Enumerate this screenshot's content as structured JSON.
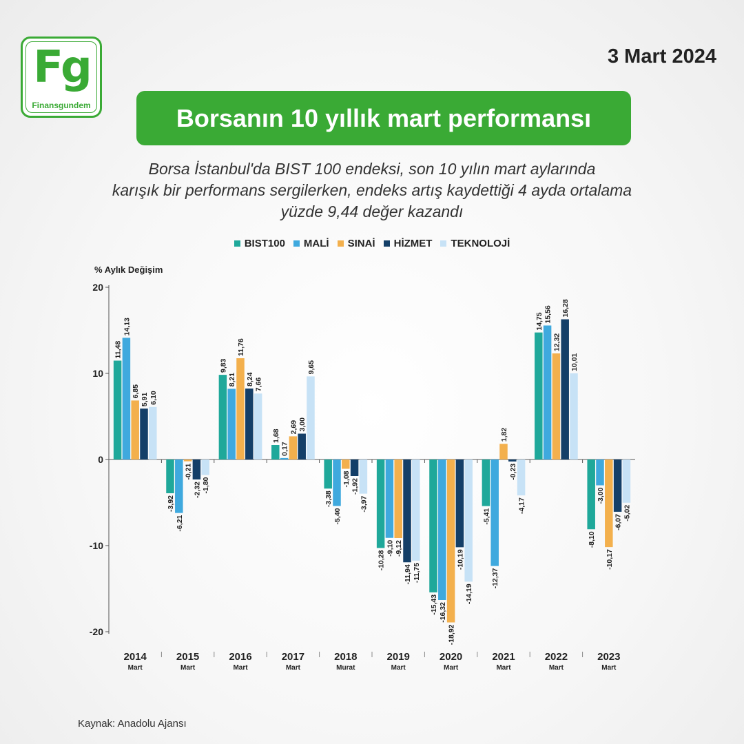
{
  "header": {
    "logo_mark": "Fg",
    "logo_text": "Finansgundem",
    "date": "3 Mart 2024",
    "title": "Borsanın 10 yıllık mart performansı",
    "subtitle_lines": [
      "Borsa İstanbul'da BIST 100 endeksi, son 10 yılın mart aylarında",
      "karışık bir performans sergilerken, endeks artış kaydettiği 4 ayda ortalama",
      "yüzde 9,44 değer kazandı"
    ]
  },
  "colors": {
    "brand_green": "#3aaa35",
    "BIST100": "#1fa89a",
    "MALİ": "#3fa9de",
    "SINAİ": "#f3b04d",
    "HİZMET": "#143f68",
    "TEKNOLOJİ": "#c7e2f6"
  },
  "chart_data": {
    "type": "bar",
    "ylabel": "% Aylık Değişim",
    "ylim": [
      -20,
      20
    ],
    "yticks": [
      "20",
      "10",
      "0",
      "-10",
      "-20"
    ],
    "grid": false,
    "legend_position": "top-center",
    "categories": [
      "2014",
      "2015",
      "2016",
      "2017",
      "2018",
      "2019",
      "2020",
      "2021",
      "2022",
      "2023"
    ],
    "category_sublabels": [
      "Mart",
      "Mart",
      "Mart",
      "Mart",
      "Murat",
      "Mart",
      "Mart",
      "Mart",
      "Mart",
      "Mart"
    ],
    "series": [
      {
        "name": "BIST100",
        "values": [
          11.48,
          -3.92,
          9.83,
          1.68,
          -3.38,
          -10.28,
          -15.43,
          -5.41,
          14.75,
          -8.1
        ],
        "labels": [
          "11,48",
          "-3,92",
          "9,83",
          "1,68",
          "-3,38",
          "-10,28",
          "-15,43",
          "-5,41",
          "14,75",
          "-8,10"
        ]
      },
      {
        "name": "MALİ",
        "values": [
          14.13,
          -6.21,
          8.21,
          0.17,
          -5.4,
          -9.1,
          -16.32,
          -12.37,
          15.56,
          -3.0
        ],
        "labels": [
          "14,13",
          "-6,21",
          "8,21",
          "0,17",
          "-5,40",
          "-9,10",
          "-16,32",
          "-12,37",
          "15,56",
          "-3,00"
        ]
      },
      {
        "name": "SINAİ",
        "values": [
          6.85,
          -0.21,
          11.76,
          2.69,
          -1.08,
          -9.12,
          -18.92,
          1.82,
          12.32,
          -10.17
        ],
        "labels": [
          "6,85",
          "-0,21",
          "11,76",
          "2,69",
          "-1,08",
          "-9,12",
          "-18,92",
          "1,82",
          "12,32",
          "-10,17"
        ]
      },
      {
        "name": "HİZMET",
        "values": [
          5.91,
          -2.32,
          8.24,
          3.0,
          -1.92,
          -11.94,
          -10.19,
          -0.23,
          16.28,
          -6.07
        ],
        "labels": [
          "5,91",
          "-2,32",
          "8,24",
          "3,00",
          "-1,92",
          "-11,94",
          "-10,19",
          "-0,23",
          "16,28",
          "-6,07"
        ]
      },
      {
        "name": "TEKNOLOJİ",
        "values": [
          6.1,
          -1.8,
          7.66,
          9.65,
          -3.97,
          -11.75,
          -14.19,
          -4.17,
          10.01,
          -5.02
        ],
        "labels": [
          "6,10",
          "-1,80",
          "7,66",
          "9,65",
          "-3,97",
          "-11,75",
          "-14,19",
          "-4,17",
          "10,01",
          "-5,02"
        ]
      }
    ]
  },
  "footer": {
    "source": "Kaynak: Anadolu Ajansı"
  }
}
